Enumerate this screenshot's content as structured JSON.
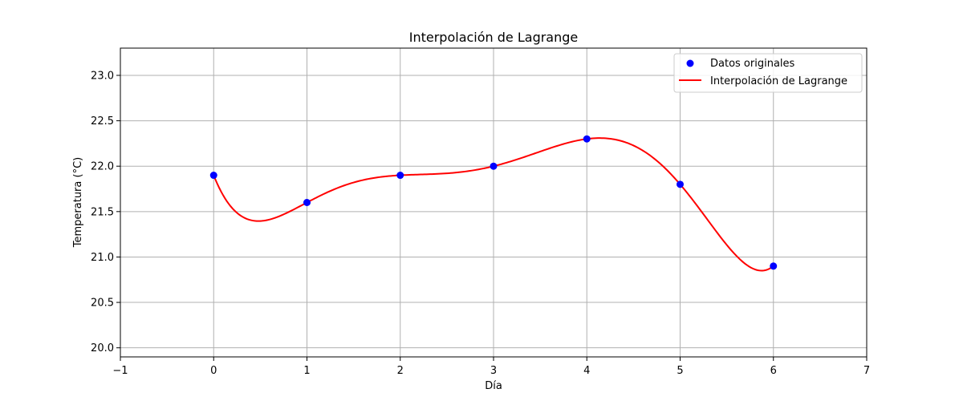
{
  "chart_data": {
    "type": "line",
    "title": "Interpolación de Lagrange",
    "xlabel": "Día",
    "ylabel": "Temperatura (°C)",
    "xlim": [
      -1,
      7
    ],
    "ylim": [
      19.9,
      23.3
    ],
    "xticks": [
      -1,
      0,
      1,
      2,
      3,
      4,
      5,
      6,
      7
    ],
    "yticks": [
      20.0,
      20.5,
      21.0,
      21.5,
      22.0,
      22.5,
      23.0
    ],
    "grid": true,
    "legend_position": "top-right",
    "series": [
      {
        "name": "Datos originales",
        "kind": "scatter",
        "color": "#0000ff",
        "x": [
          0,
          1,
          2,
          3,
          4,
          5,
          6
        ],
        "y": [
          21.9,
          21.6,
          21.9,
          22.0,
          22.3,
          21.8,
          20.9
        ]
      },
      {
        "name": "Interpolación de Lagrange",
        "kind": "line",
        "color": "#ff0000"
      }
    ]
  }
}
